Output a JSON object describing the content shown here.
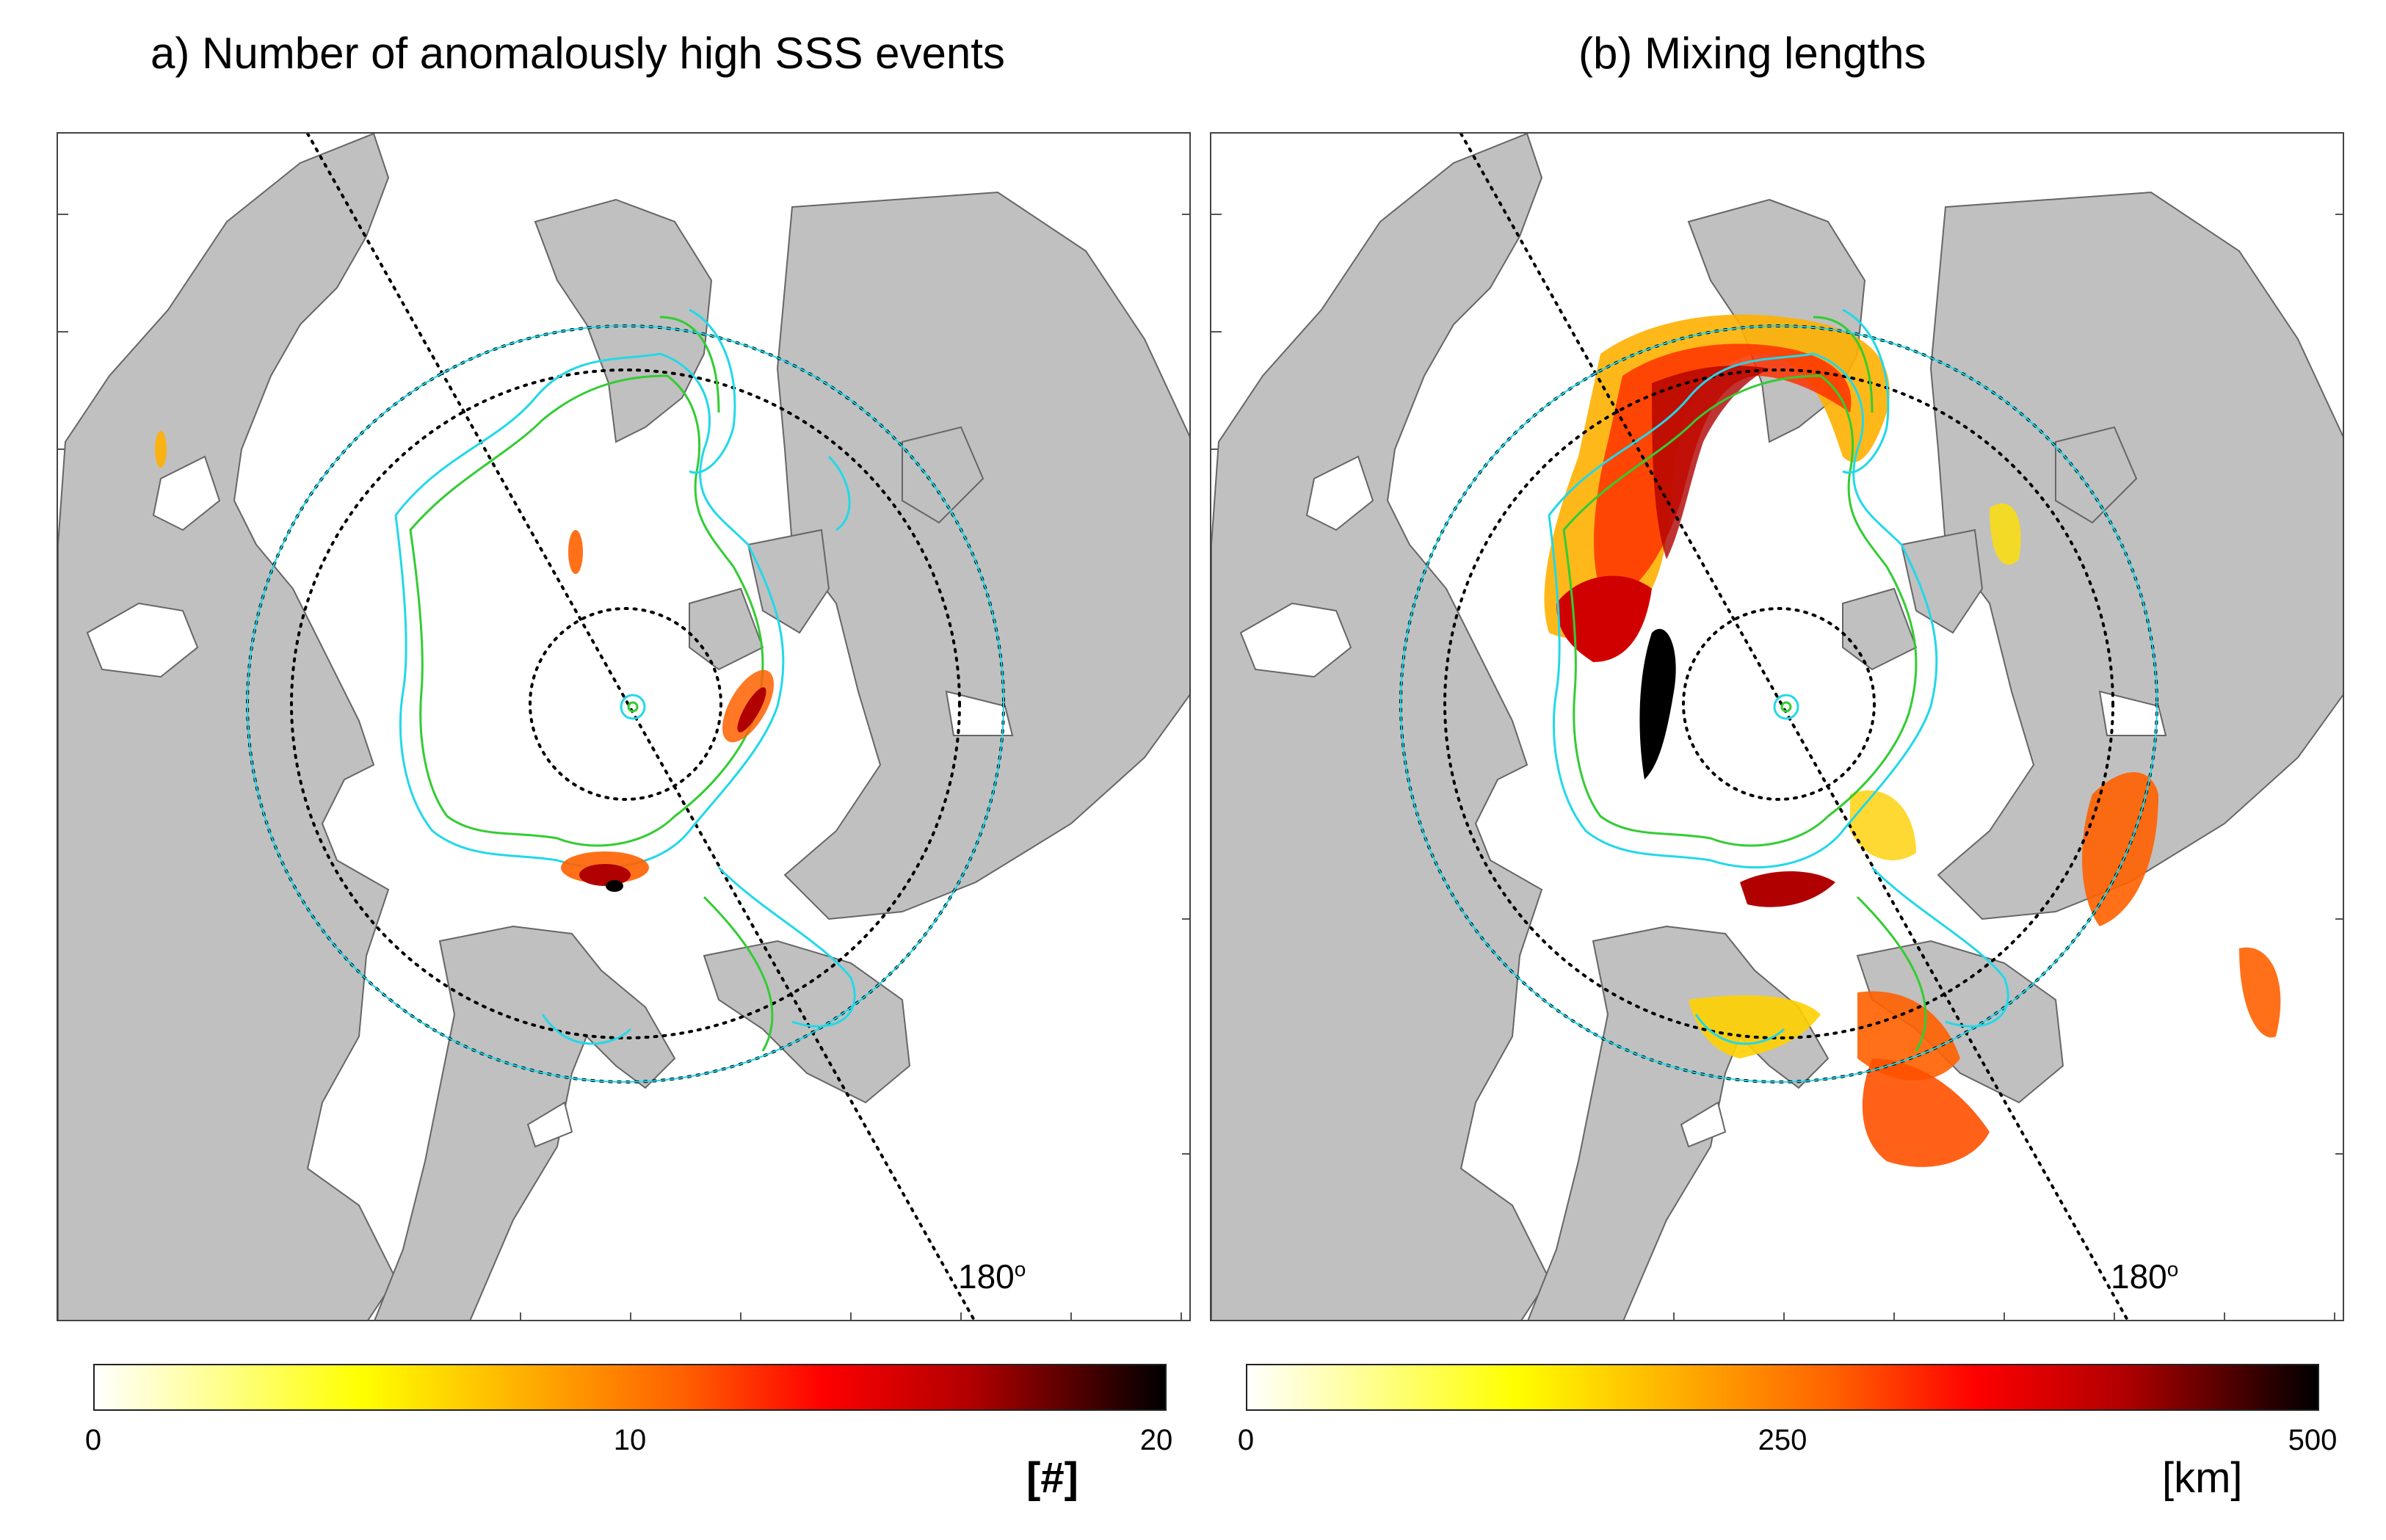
{
  "panels": [
    {
      "title": "a) Number of anomalously high SSS events",
      "meridian_label": "180",
      "meridian_label_sup": "o",
      "colorbar": {
        "ticks": [
          "0",
          "10",
          "20"
        ],
        "unit": "[#]"
      }
    },
    {
      "title": "(b) Mixing lengths",
      "meridian_label": "180",
      "meridian_label_sup": "o",
      "colorbar": {
        "ticks": [
          "0",
          "250",
          "500"
        ],
        "unit": "[km]"
      }
    }
  ],
  "colors": {
    "land": "#c0c0c0",
    "ocean": "#ffffff",
    "contour_cyan": "#22d8e8",
    "contour_green": "#33cc33",
    "colormap": [
      "#ffffff",
      "#ffff8a",
      "#ffff00",
      "#ffb000",
      "#ff6000",
      "#ff0000",
      "#b00000",
      "#000000"
    ]
  }
}
